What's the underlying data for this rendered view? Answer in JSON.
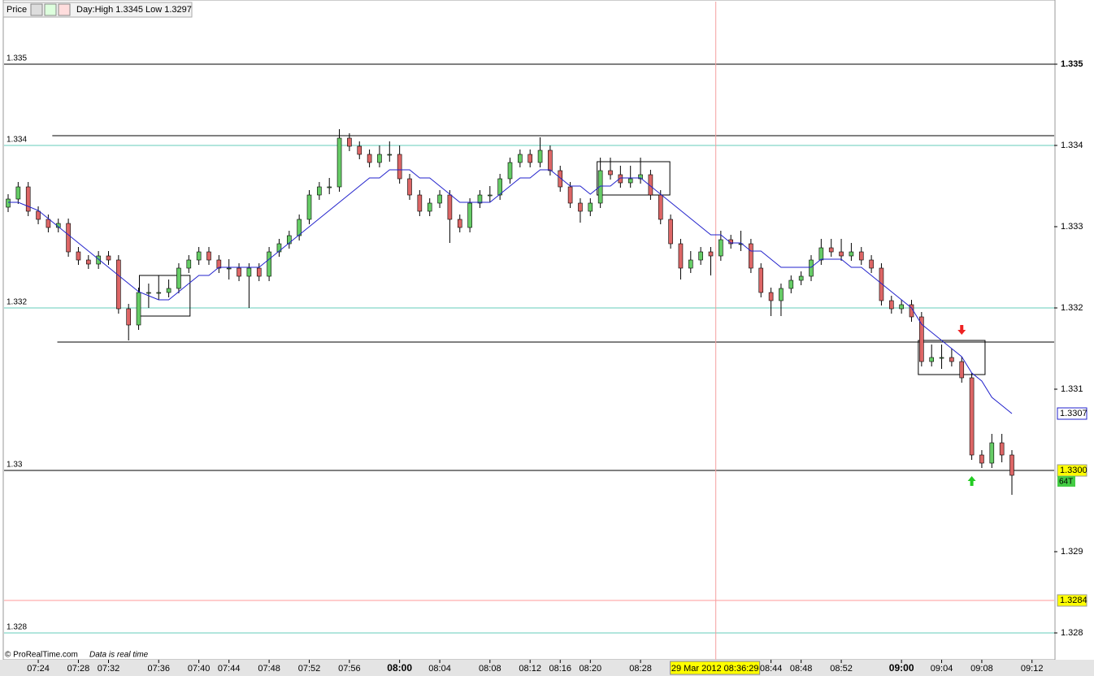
{
  "chart_data": {
    "type": "candlestick",
    "title": "Price",
    "subtitle": "Day:High 1.3345 Low 1.3297",
    "footer": "© ProRealTime.com",
    "footer_note": "Data is real time",
    "open": [
      1.33324,
      1.33334,
      1.33349,
      1.33319,
      1.33309,
      1.33299,
      1.33304,
      1.33269,
      1.33259,
      1.33254,
      1.33264,
      1.33259,
      1.33199,
      1.33179,
      1.33219,
      1.33219,
      1.33219,
      1.33224,
      1.33249,
      1.33259,
      1.33269,
      1.33259,
      1.33249,
      1.33249,
      1.33239,
      1.33249,
      1.33239,
      1.33269,
      1.33279,
      1.33289,
      1.33309,
      1.33339,
      1.33349,
      1.33349,
      1.33409,
      1.33399,
      1.33389,
      1.33379,
      1.33389,
      1.33389,
      1.33359,
      1.33339,
      1.33319,
      1.33329,
      1.33339,
      1.33309,
      1.33299,
      1.33329,
      1.33339,
      1.33339,
      1.33359,
      1.33379,
      1.33389,
      1.33379,
      1.33394,
      1.33369,
      1.33349,
      1.33329,
      1.33319,
      1.33329,
      1.33369,
      1.33364,
      1.33354,
      1.33359,
      1.33364,
      1.33339,
      1.33309,
      1.33279,
      1.33249,
      1.33259,
      1.33269,
      1.33264,
      1.33284,
      1.33279,
      1.33279,
      1.33249,
      1.33219,
      1.33209,
      1.33224,
      1.33234,
      1.33239,
      1.33259,
      1.33274,
      1.33269,
      1.33264,
      1.33269,
      1.33259,
      1.33249,
      1.33209,
      1.33199,
      1.33204,
      1.33189,
      1.33134,
      1.33139,
      1.33139,
      1.33134,
      1.33114,
      1.33019,
      1.33009,
      1.33034,
      1.33019
    ],
    "high": [
      1.3334,
      1.33355,
      1.33355,
      1.33325,
      1.33315,
      1.3331,
      1.3331,
      1.33275,
      1.33265,
      1.3327,
      1.3327,
      1.33265,
      1.33205,
      1.33225,
      1.3323,
      1.3324,
      1.33235,
      1.33255,
      1.33265,
      1.33275,
      1.33275,
      1.33265,
      1.3326,
      1.33255,
      1.33255,
      1.33255,
      1.33275,
      1.33285,
      1.33295,
      1.33315,
      1.33345,
      1.33355,
      1.3336,
      1.3342,
      1.33415,
      1.33405,
      1.33395,
      1.334,
      1.33405,
      1.334,
      1.33365,
      1.33345,
      1.33335,
      1.33345,
      1.33345,
      1.33315,
      1.33335,
      1.33345,
      1.3335,
      1.33365,
      1.33385,
      1.33395,
      1.33395,
      1.3341,
      1.334,
      1.33375,
      1.33355,
      1.33335,
      1.33335,
      1.33385,
      1.33385,
      1.33375,
      1.33375,
      1.33385,
      1.3337,
      1.33345,
      1.33315,
      1.33285,
      1.3327,
      1.33275,
      1.33275,
      1.33295,
      1.3329,
      1.33295,
      1.33285,
      1.33255,
      1.33225,
      1.3323,
      1.3324,
      1.33245,
      1.33265,
      1.33285,
      1.33285,
      1.33285,
      1.3328,
      1.33275,
      1.33265,
      1.33255,
      1.33215,
      1.3321,
      1.3321,
      1.33195,
      1.33155,
      1.33155,
      1.3315,
      1.3314,
      1.3312,
      1.33025,
      1.33045,
      1.33045,
      1.33025
    ],
    "low": [
      1.33318,
      1.33328,
      1.33313,
      1.33303,
      1.33293,
      1.33293,
      1.33263,
      1.33253,
      1.33248,
      1.33248,
      1.33253,
      1.33193,
      1.3316,
      1.33173,
      1.332,
      1.3321,
      1.33213,
      1.33218,
      1.33243,
      1.33253,
      1.33253,
      1.33243,
      1.33235,
      1.33233,
      1.332,
      1.33233,
      1.33233,
      1.33263,
      1.33273,
      1.33283,
      1.33303,
      1.33333,
      1.3334,
      1.33343,
      1.33393,
      1.33383,
      1.33373,
      1.33373,
      1.3338,
      1.33353,
      1.33333,
      1.33313,
      1.33313,
      1.33323,
      1.3328,
      1.33293,
      1.33293,
      1.33323,
      1.3333,
      1.33333,
      1.33353,
      1.33373,
      1.33373,
      1.33373,
      1.33363,
      1.33343,
      1.33323,
      1.33305,
      1.33313,
      1.33323,
      1.33358,
      1.33348,
      1.33348,
      1.33353,
      1.33333,
      1.33303,
      1.33273,
      1.33235,
      1.33243,
      1.33253,
      1.3324,
      1.33258,
      1.33273,
      1.3327,
      1.33243,
      1.33213,
      1.3319,
      1.3319,
      1.33218,
      1.33228,
      1.33233,
      1.33253,
      1.33263,
      1.33258,
      1.33258,
      1.33253,
      1.33243,
      1.33203,
      1.33193,
      1.33193,
      1.33183,
      1.33128,
      1.33128,
      1.33125,
      1.33128,
      1.33108,
      1.33013,
      1.33003,
      1.33003,
      1.3301,
      1.3297
    ],
    "close": [
      1.33334,
      1.33349,
      1.33319,
      1.33309,
      1.33299,
      1.33304,
      1.33269,
      1.33259,
      1.33254,
      1.33264,
      1.33259,
      1.33199,
      1.33179,
      1.33219,
      1.33219,
      1.33219,
      1.33224,
      1.33249,
      1.33259,
      1.33269,
      1.33259,
      1.33249,
      1.33249,
      1.33239,
      1.33249,
      1.33239,
      1.33269,
      1.33279,
      1.33289,
      1.33309,
      1.33339,
      1.33349,
      1.33349,
      1.33409,
      1.33399,
      1.33389,
      1.33379,
      1.33389,
      1.33389,
      1.33359,
      1.33339,
      1.33319,
      1.33329,
      1.33339,
      1.33309,
      1.33299,
      1.33329,
      1.33339,
      1.33339,
      1.33359,
      1.33379,
      1.33389,
      1.33379,
      1.33394,
      1.33369,
      1.33349,
      1.33329,
      1.33319,
      1.33329,
      1.33369,
      1.33364,
      1.33354,
      1.33359,
      1.33364,
      1.33339,
      1.33309,
      1.33279,
      1.33249,
      1.33259,
      1.33269,
      1.33264,
      1.33284,
      1.33279,
      1.33279,
      1.33249,
      1.33219,
      1.33209,
      1.33224,
      1.33234,
      1.33239,
      1.33259,
      1.33274,
      1.33269,
      1.33264,
      1.33269,
      1.33259,
      1.33249,
      1.33209,
      1.33199,
      1.33204,
      1.33189,
      1.33134,
      1.33139,
      1.33139,
      1.33134,
      1.33114,
      1.33019,
      1.33009,
      1.33034,
      1.33019,
      1.32994
    ],
    "ma": {
      "color": "#2222cc",
      "values": [
        1.3333,
        1.3333,
        1.33325,
        1.3332,
        1.3331,
        1.333,
        1.3329,
        1.3328,
        1.3327,
        1.3326,
        1.3325,
        1.3324,
        1.3323,
        1.3322,
        1.33215,
        1.3321,
        1.3321,
        1.3322,
        1.3323,
        1.3324,
        1.3324,
        1.3325,
        1.3325,
        1.3325,
        1.3325,
        1.3325,
        1.3326,
        1.3327,
        1.3328,
        1.3329,
        1.333,
        1.3331,
        1.3332,
        1.3333,
        1.3334,
        1.3335,
        1.3336,
        1.3336,
        1.3337,
        1.3337,
        1.3337,
        1.3336,
        1.3336,
        1.3335,
        1.3334,
        1.3333,
        1.3333,
        1.3333,
        1.3333,
        1.3334,
        1.3335,
        1.3336,
        1.3336,
        1.3337,
        1.3337,
        1.3336,
        1.3335,
        1.3335,
        1.3334,
        1.3335,
        1.3335,
        1.3336,
        1.3336,
        1.3336,
        1.3335,
        1.3334,
        1.3333,
        1.3332,
        1.3331,
        1.333,
        1.3329,
        1.3329,
        1.3328,
        1.3328,
        1.3327,
        1.3327,
        1.3326,
        1.3325,
        1.3325,
        1.3325,
        1.3325,
        1.3326,
        1.3326,
        1.3326,
        1.3325,
        1.3325,
        1.3324,
        1.3323,
        1.3322,
        1.3321,
        1.332,
        1.3318,
        1.3317,
        1.3316,
        1.3315,
        1.3314,
        1.3312,
        1.3311,
        1.3309,
        1.3308,
        1.3307
      ]
    },
    "up_color": "#66cc66",
    "down_color": "#dd6666",
    "ylim": [
      1.3278,
      1.3358
    ],
    "yticks": [
      1.328,
      1.329,
      1.331,
      1.332,
      1.333,
      1.334,
      1.335
    ],
    "left_labels": [
      1.328,
      1.33,
      1.332,
      1.334,
      1.335
    ],
    "xticks": [
      {
        "value": 3,
        "label": "07:24"
      },
      {
        "value": 7,
        "label": "07:28"
      },
      {
        "value": 10,
        "label": "07:32"
      },
      {
        "value": 15,
        "label": "07:36"
      },
      {
        "value": 19,
        "label": "07:40"
      },
      {
        "value": 22,
        "label": "07:44"
      },
      {
        "value": 26,
        "label": "07:48"
      },
      {
        "value": 30,
        "label": "07:52"
      },
      {
        "value": 34,
        "label": "07:56"
      },
      {
        "value": 39,
        "label": "08:00"
      },
      {
        "value": 43,
        "label": "08:04"
      },
      {
        "value": 48,
        "label": "08:08"
      },
      {
        "value": 52,
        "label": "08:12"
      },
      {
        "value": 55,
        "label": "08:16"
      },
      {
        "value": 58,
        "label": "08:20"
      },
      {
        "value": 63,
        "label": "08:28"
      },
      {
        "value": 76,
        "label": "08:44"
      },
      {
        "value": 79,
        "label": "08:48"
      },
      {
        "value": 83,
        "label": "08:52"
      },
      {
        "value": 89,
        "label": "09:00"
      },
      {
        "value": 93,
        "label": "09:04"
      },
      {
        "value": 97,
        "label": "09:08"
      },
      {
        "value": 102,
        "label": "09:12"
      }
    ],
    "bold_ticks": [
      9,
      19
    ],
    "lines": [
      {
        "value": 1.335,
        "color": "#000000",
        "from": -0.5
      },
      {
        "value": 1.33412,
        "color": "#000000",
        "from": 4.4
      },
      {
        "value": 1.33158,
        "color": "#000000",
        "from": 4.9
      },
      {
        "value": 1.33,
        "color": "#000000",
        "from": -0.5
      },
      {
        "value": 1.334,
        "color": "#66ccbb",
        "from": -0.5
      },
      {
        "value": 1.332,
        "color": "#66ccbb",
        "from": -0.5
      },
      {
        "value": 1.328,
        "color": "#66ccbb",
        "from": -0.5
      },
      {
        "value": 1.3284,
        "color": "#ff9999",
        "from": -0.5
      }
    ],
    "boxes": [
      {
        "from": 13.4,
        "to": 17.8,
        "high": 1.3324,
        "low": 1.3319
      },
      {
        "from": 59,
        "to": 65.6,
        "high": 1.3338,
        "low": 1.33339
      },
      {
        "from": 91,
        "to": 97,
        "high": 1.3316,
        "low": 1.33118
      }
    ],
    "signals": [
      {
        "index": 95,
        "price": 1.33165,
        "direction": "down",
        "color": "#ee2222"
      },
      {
        "index": 96,
        "price": 1.32995,
        "direction": "up",
        "color": "#22cc22"
      }
    ],
    "markers": [
      {
        "value": 1.3307,
        "label": "1.3307",
        "bg": "#ffffff",
        "border": "#2222cc"
      },
      {
        "value": 1.33,
        "label": "1.3300",
        "bg": "#ffff00",
        "border": "#999999"
      },
      {
        "value": 1.3284,
        "label": "1.3284",
        "bg": "#ffff00",
        "border": "#999999"
      }
    ],
    "tick_count": "64T",
    "cursor": {
      "index": 70.5,
      "label": "29 Mar 2012 08:36:29"
    }
  }
}
